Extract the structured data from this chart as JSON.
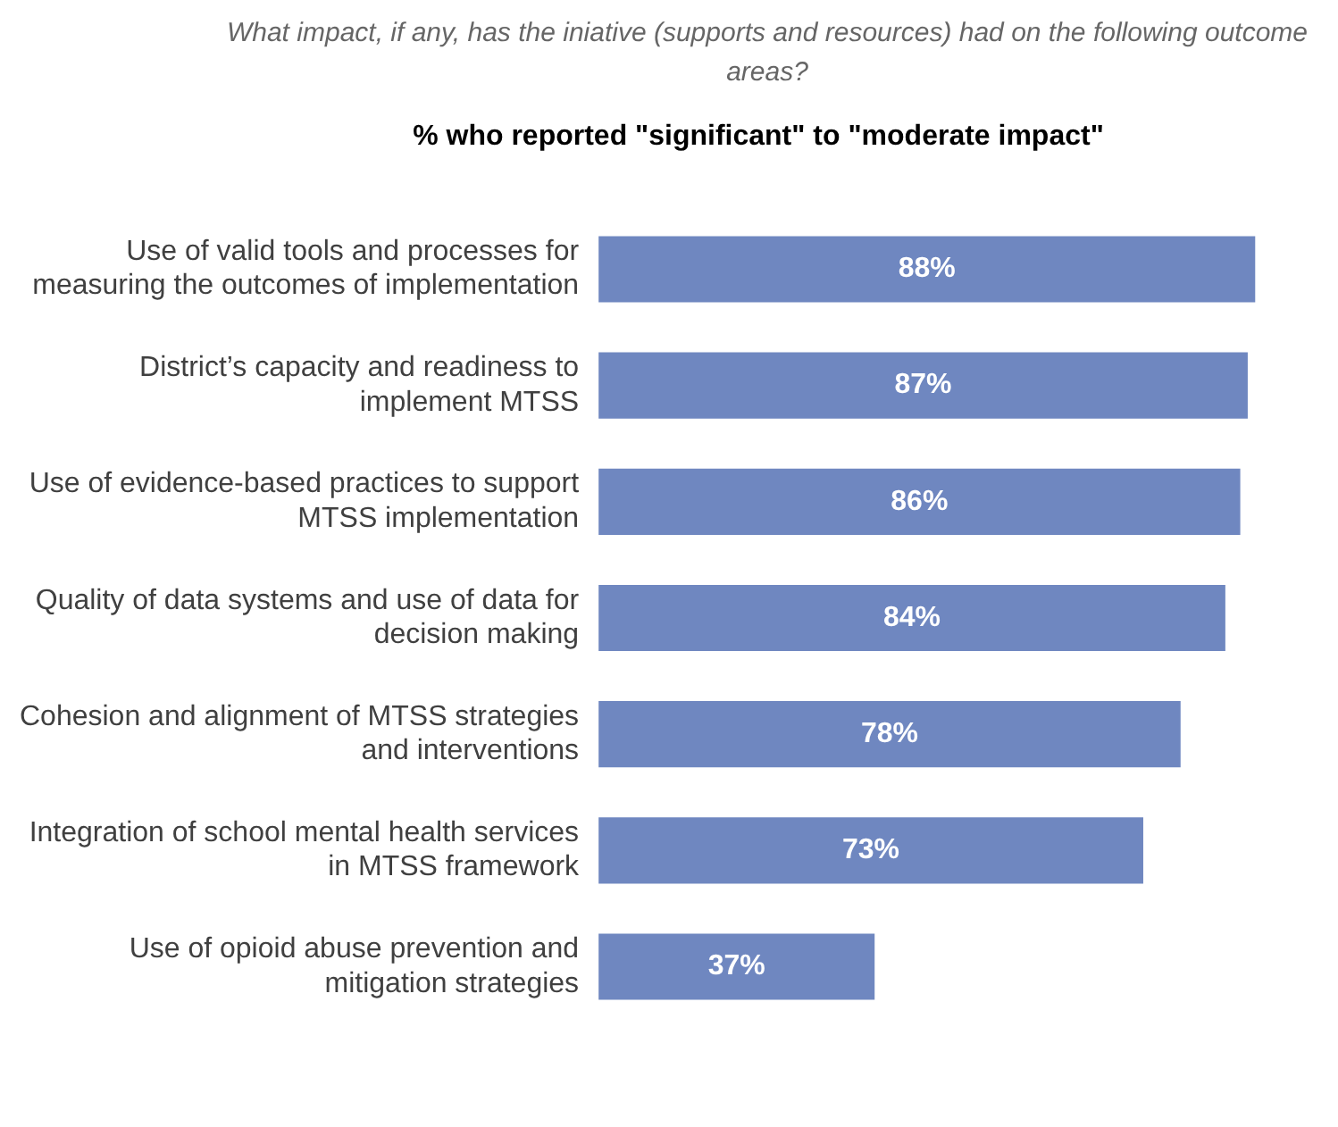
{
  "chart_data": {
    "type": "bar",
    "orientation": "horizontal",
    "title": "What impact, if any, has the iniative (supports and resources) had on the following outcome areas?",
    "subtitle": "% who reported \"significant\" to \"moderate impact\"",
    "categories": [
      "Use of valid tools and processes for measuring the outcomes of implementation",
      "District’s capacity and readiness to implement MTSS",
      "Use of evidence-based practices to support MTSS implementation",
      "Quality of data systems and use of data for decision making",
      "Cohesion and alignment of MTSS strategies and interventions",
      "Integration of school mental health services in MTSS framework",
      "Use of opioid abuse prevention and mitigation strategies"
    ],
    "values": [
      88,
      87,
      86,
      84,
      78,
      73,
      37
    ],
    "value_labels": [
      "88%",
      "87%",
      "86%",
      "84%",
      "78%",
      "73%",
      "37%"
    ],
    "color": "#6f87c0",
    "legend": false
  }
}
